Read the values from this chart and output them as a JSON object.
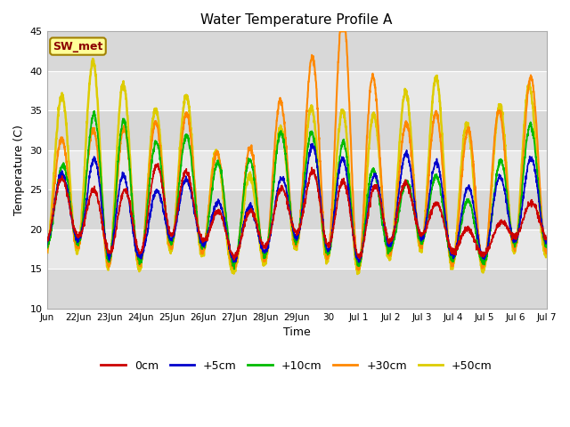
{
  "title": "Water Temperature Profile A",
  "xlabel": "Time",
  "ylabel": "Temperature (C)",
  "ylim": [
    10,
    45
  ],
  "background_color": "#ffffff",
  "plot_bg_color": "#e0e0e0",
  "plot_bg_light": "#f0f0f0",
  "annotation_text": "SW_met",
  "annotation_fgcolor": "#8b0000",
  "annotation_bgcolor": "#ffff99",
  "annotation_edgecolor": "#a08000",
  "legend_labels": [
    "0cm",
    "+5cm",
    "+10cm",
    "+30cm",
    "+50cm"
  ],
  "legend_colors": [
    "#cc0000",
    "#0000cc",
    "#00bb00",
    "#ff8800",
    "#ddcc00"
  ],
  "x_tick_labels": [
    "Jun",
    "22Jun",
    "23Jun",
    "24Jun",
    "25Jun",
    "26Jun",
    "27Jun",
    "28Jun",
    "29Jun",
    "30",
    "Jul 1",
    "Jul 2",
    "Jul 3",
    "Jul 4",
    "Jul 5",
    "Jul 6",
    "Jul 7"
  ],
  "yticks": [
    10,
    15,
    20,
    25,
    30,
    35,
    40,
    45
  ],
  "n_days": 16,
  "pts_per_day": 144
}
